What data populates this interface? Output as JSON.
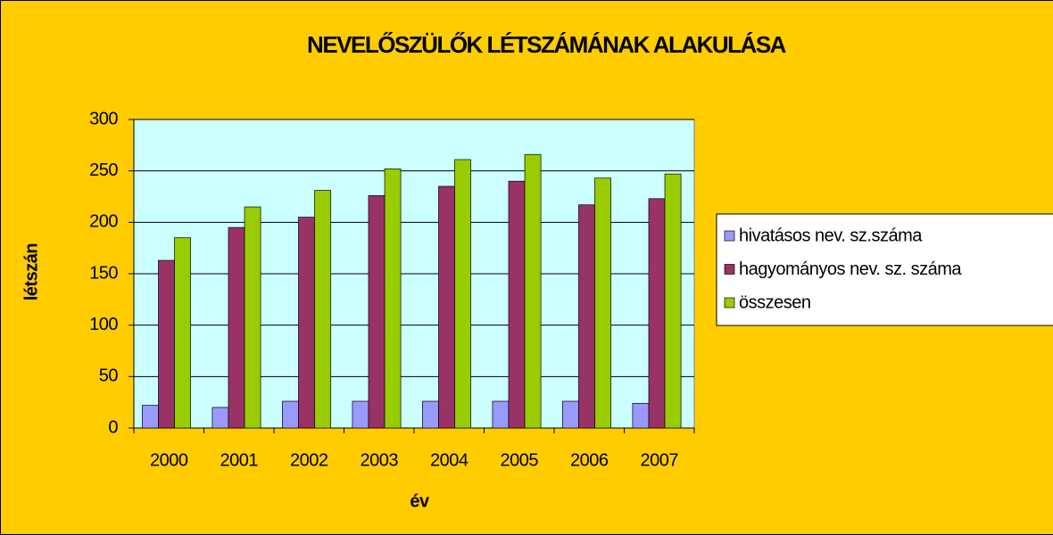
{
  "chart_data": {
    "type": "bar",
    "title": "NEVELŐSZÜLŐK LÉTSZÁMÁNAK ALAKULÁSA",
    "x_label": "év",
    "y_label": "létszán",
    "categories": [
      "2000",
      "2001",
      "2002",
      "2003",
      "2004",
      "2005",
      "2006",
      "2007"
    ],
    "series": [
      {
        "name": "hivatásos nev. sz.száma",
        "color": "#9999ff",
        "values": [
          22,
          20,
          26,
          26,
          26,
          26,
          26,
          24
        ]
      },
      {
        "name": "hagyományos nev. sz. száma",
        "color": "#993366",
        "values": [
          163,
          195,
          205,
          226,
          235,
          240,
          217,
          223
        ]
      },
      {
        "name": "összesen",
        "color": "#99cc00",
        "values": [
          185,
          215,
          231,
          252,
          261,
          266,
          243,
          247
        ]
      }
    ],
    "ylim": [
      0,
      300
    ],
    "yticks": [
      0,
      50,
      100,
      150,
      200,
      250,
      300
    ],
    "grid": true,
    "legend": "right"
  }
}
